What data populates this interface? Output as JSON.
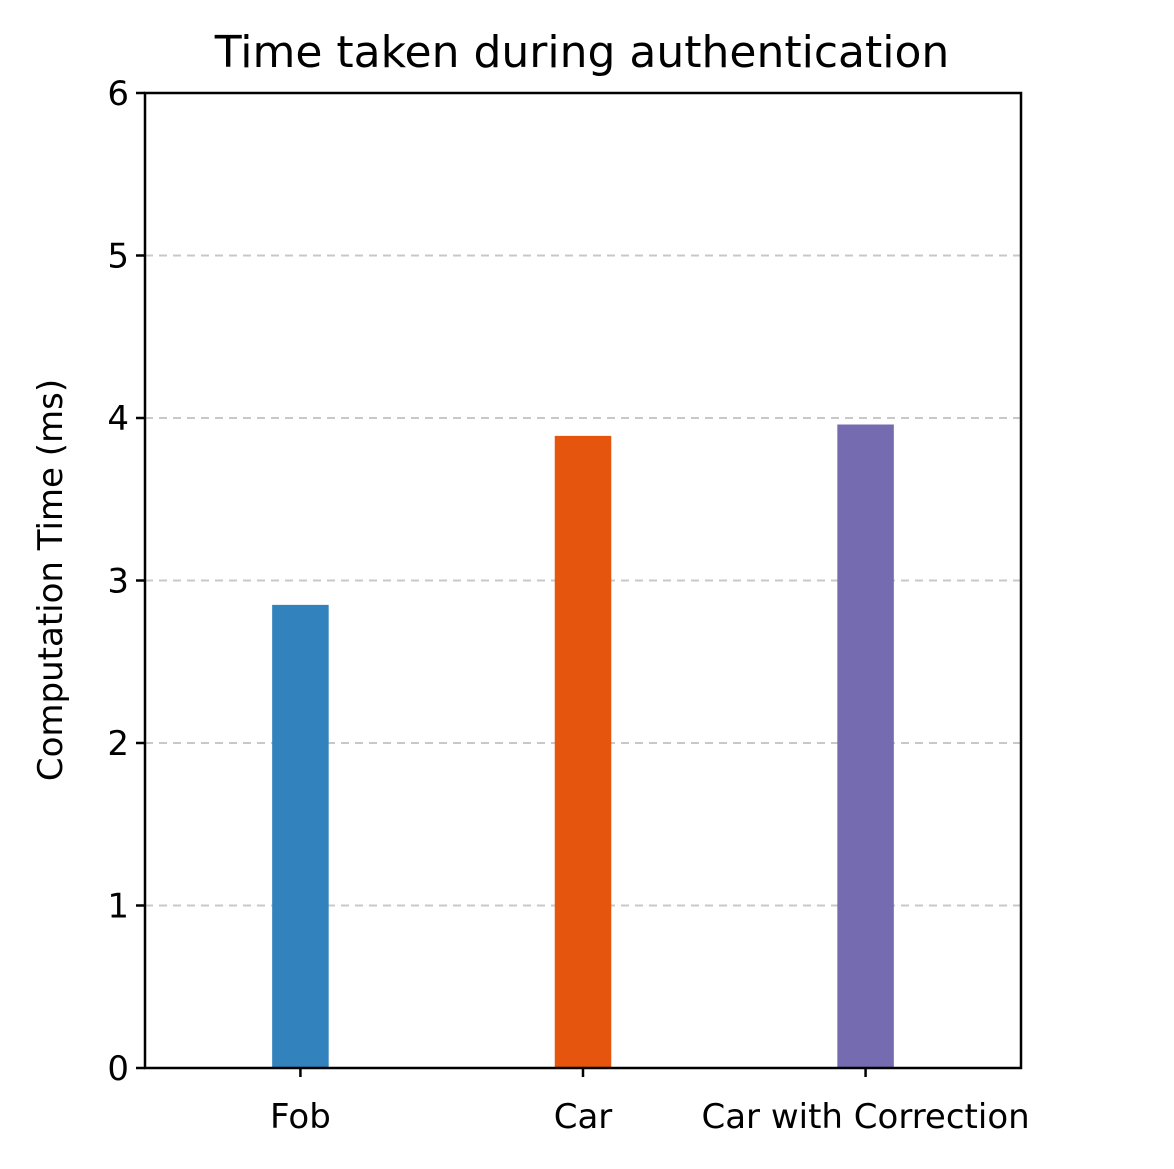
{
  "chart_data": {
    "type": "bar",
    "title": "Time taken during authentication",
    "xlabel": "",
    "ylabel": "Computation Time (ms)",
    "ylim": [
      0,
      6
    ],
    "yticks": [
      "0",
      "1",
      "2",
      "3",
      "4",
      "5",
      "6"
    ],
    "grid": "y-axis dashed",
    "categories": [
      "Fob",
      "Car",
      "Car with Correction"
    ],
    "values": [
      2.85,
      3.89,
      3.96
    ],
    "colors": [
      "#3182bd",
      "#e6550d",
      "#756bb1"
    ]
  }
}
